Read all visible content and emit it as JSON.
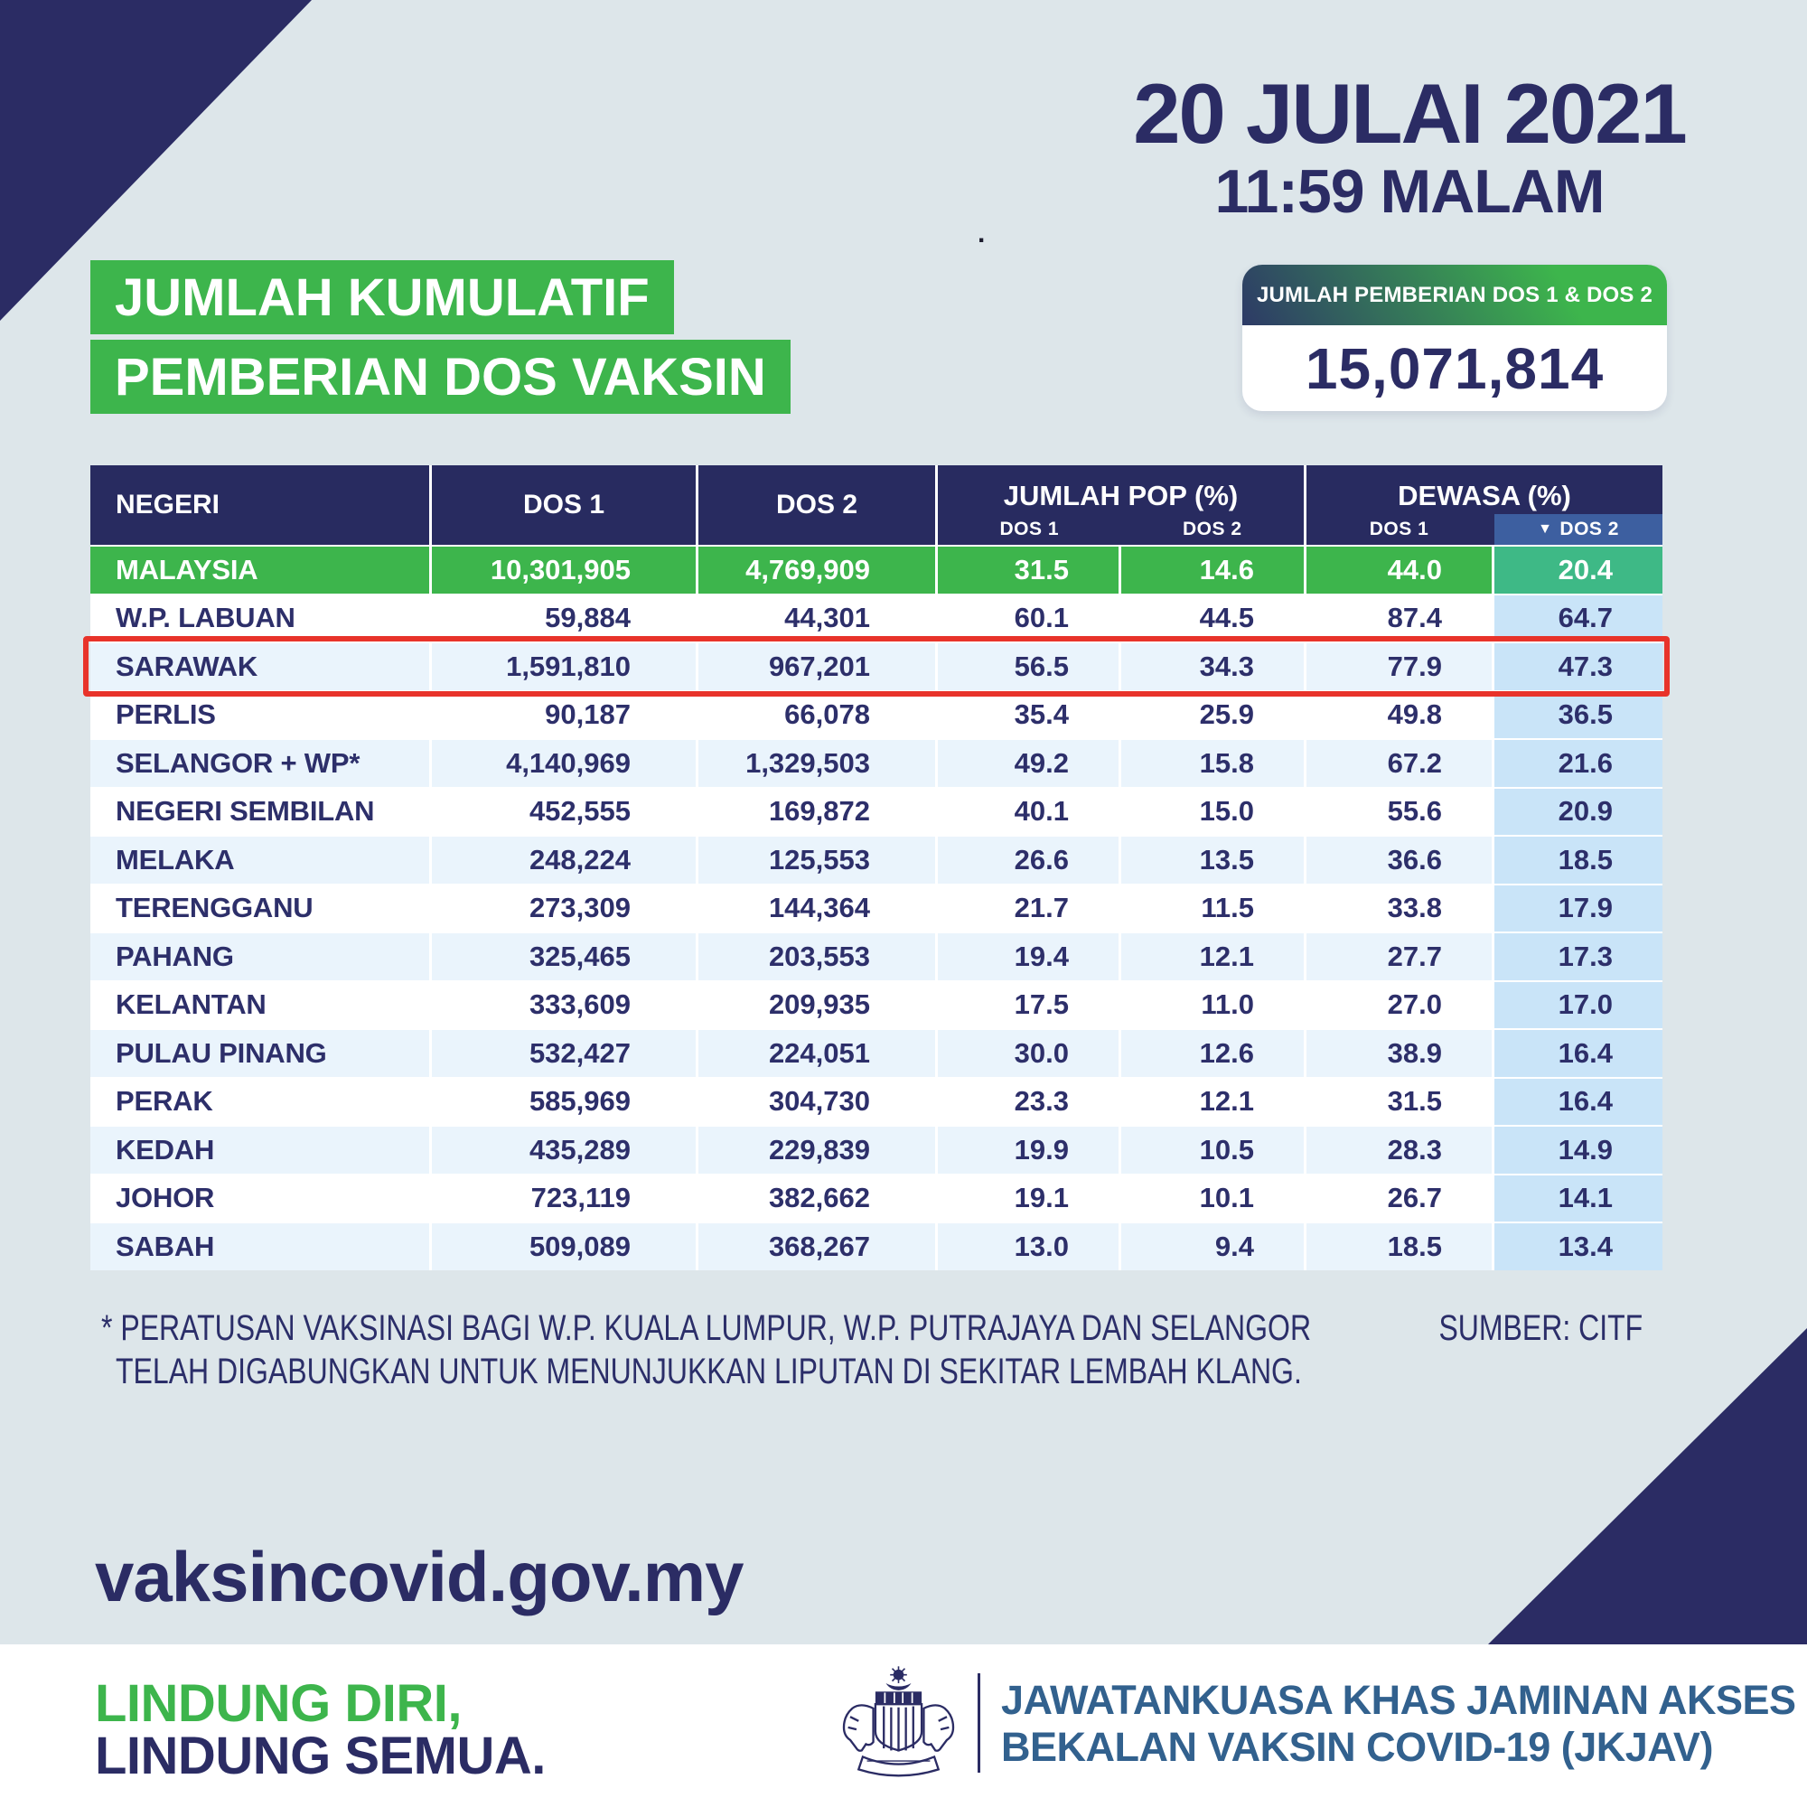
{
  "header": {
    "date": "20 JULAI 2021",
    "time": "11:59 MALAM",
    "stray_dot": ".",
    "title_line1": "JUMLAH KUMULATIF",
    "title_line2": "PEMBERIAN DOS VAKSIN",
    "badge": {
      "label": "JUMLAH PEMBERIAN DOS 1 & DOS 2",
      "value": "15,071,814"
    }
  },
  "table": {
    "header": {
      "negeri": "NEGERI",
      "dos1": "DOS 1",
      "dos2": "DOS 2",
      "jumlah_pop": {
        "label": "JUMLAH POP (%)",
        "sub_dos1": "DOS 1",
        "sub_dos2": "DOS 2"
      },
      "dewasa": {
        "label": "DEWASA (%)",
        "sub_dos1": "DOS 1",
        "sub_dos2": "DOS 2",
        "sort_icon": "▼"
      }
    },
    "rows": [
      {
        "name": "MALAYSIA",
        "dos1": "10,301,905",
        "dos2": "4,769,909",
        "pop_dos1": "31.5",
        "pop_dos2": "14.6",
        "dewasa_dos1": "44.0",
        "dewasa_dos2": "20.4",
        "is_total": true
      },
      {
        "name": "W.P. LABUAN",
        "dos1": "59,884",
        "dos2": "44,301",
        "pop_dos1": "60.1",
        "pop_dos2": "44.5",
        "dewasa_dos1": "87.4",
        "dewasa_dos2": "64.7"
      },
      {
        "name": "SARAWAK",
        "dos1": "1,591,810",
        "dos2": "967,201",
        "pop_dos1": "56.5",
        "pop_dos2": "34.3",
        "dewasa_dos1": "77.9",
        "dewasa_dos2": "47.3",
        "is_outlined": true
      },
      {
        "name": "PERLIS",
        "dos1": "90,187",
        "dos2": "66,078",
        "pop_dos1": "35.4",
        "pop_dos2": "25.9",
        "dewasa_dos1": "49.8",
        "dewasa_dos2": "36.5"
      },
      {
        "name": "SELANGOR + WP*",
        "dos1": "4,140,969",
        "dos2": "1,329,503",
        "pop_dos1": "49.2",
        "pop_dos2": "15.8",
        "dewasa_dos1": "67.2",
        "dewasa_dos2": "21.6"
      },
      {
        "name": "NEGERI SEMBILAN",
        "dos1": "452,555",
        "dos2": "169,872",
        "pop_dos1": "40.1",
        "pop_dos2": "15.0",
        "dewasa_dos1": "55.6",
        "dewasa_dos2": "20.9"
      },
      {
        "name": "MELAKA",
        "dos1": "248,224",
        "dos2": "125,553",
        "pop_dos1": "26.6",
        "pop_dos2": "13.5",
        "dewasa_dos1": "36.6",
        "dewasa_dos2": "18.5"
      },
      {
        "name": "TERENGGANU",
        "dos1": "273,309",
        "dos2": "144,364",
        "pop_dos1": "21.7",
        "pop_dos2": "11.5",
        "dewasa_dos1": "33.8",
        "dewasa_dos2": "17.9"
      },
      {
        "name": "PAHANG",
        "dos1": "325,465",
        "dos2": "203,553",
        "pop_dos1": "19.4",
        "pop_dos2": "12.1",
        "dewasa_dos1": "27.7",
        "dewasa_dos2": "17.3"
      },
      {
        "name": "KELANTAN",
        "dos1": "333,609",
        "dos2": "209,935",
        "pop_dos1": "17.5",
        "pop_dos2": "11.0",
        "dewasa_dos1": "27.0",
        "dewasa_dos2": "17.0"
      },
      {
        "name": "PULAU PINANG",
        "dos1": "532,427",
        "dos2": "224,051",
        "pop_dos1": "30.0",
        "pop_dos2": "12.6",
        "dewasa_dos1": "38.9",
        "dewasa_dos2": "16.4"
      },
      {
        "name": "PERAK",
        "dos1": "585,969",
        "dos2": "304,730",
        "pop_dos1": "23.3",
        "pop_dos2": "12.1",
        "dewasa_dos1": "31.5",
        "dewasa_dos2": "16.4"
      },
      {
        "name": "KEDAH",
        "dos1": "435,289",
        "dos2": "229,839",
        "pop_dos1": "19.9",
        "pop_dos2": "10.5",
        "dewasa_dos1": "28.3",
        "dewasa_dos2": "14.9"
      },
      {
        "name": "JOHOR",
        "dos1": "723,119",
        "dos2": "382,662",
        "pop_dos1": "19.1",
        "pop_dos2": "10.1",
        "dewasa_dos1": "26.7",
        "dewasa_dos2": "14.1"
      },
      {
        "name": "SABAH",
        "dos1": "509,089",
        "dos2": "368,267",
        "pop_dos1": "13.0",
        "pop_dos2": "9.4",
        "dewasa_dos1": "18.5",
        "dewasa_dos2": "13.4"
      }
    ]
  },
  "footnote": {
    "line1": "* PERATUSAN VAKSINASI BAGI W.P. KUALA LUMPUR, W.P. PUTRAJAYA DAN SELANGOR",
    "line2": "TELAH DIGABUNGKAN UNTUK MENUNJUKKAN LIPUTAN DI SEKITAR LEMBAH KLANG.",
    "source": "SUMBER: CITF"
  },
  "website": "vaksincovid.gov.my",
  "tagline": {
    "line1": "LINDUNG DIRI,",
    "line2": "LINDUNG SEMUA."
  },
  "footer": {
    "org_line1": "JAWATANKUASA KHAS JAMINAN AKSES",
    "org_line2": "BEKALAN VAKSIN COVID-19 (JKJAV)"
  },
  "colors": {
    "background": "#dde6ea",
    "navy": "#2b2c64",
    "table_header_navy": "#282b60",
    "green": "#3db54c",
    "malaysia_dewasa2_teal": "#3eb986",
    "sorted_subheader_blue": "#3d5fa0",
    "highlight_column_blue": "#c9e4f8",
    "stripe_row_blue": "#eaf4fc",
    "outline_red": "#e8332a",
    "footer_text_blue": "#32618e"
  }
}
